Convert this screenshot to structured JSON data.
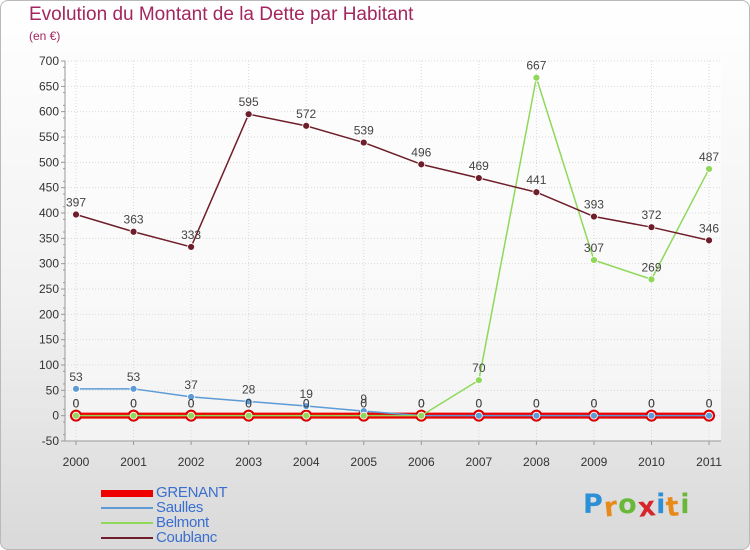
{
  "title": "Evolution du Montant de la Dette par Habitant",
  "unit_label": "(en €)",
  "logo_text": "Proxiti",
  "chart_data": {
    "type": "line",
    "title": "Evolution du Montant de la Dette par Habitant",
    "ylabel": "(en €)",
    "x": [
      "2000",
      "2001",
      "2002",
      "2003",
      "2004",
      "2005",
      "2006",
      "2007",
      "2008",
      "2009",
      "2010",
      "2011"
    ],
    "ylim": [
      -50,
      700
    ],
    "yticks": [
      -50,
      0,
      50,
      100,
      150,
      200,
      250,
      300,
      350,
      400,
      450,
      500,
      550,
      600,
      650,
      700
    ],
    "grid": true,
    "legend_position": "bottom-left",
    "series": [
      {
        "name": "GRENANT",
        "color": "#ee0000",
        "values": [
          0,
          0,
          0,
          0,
          0,
          0,
          0,
          0,
          0,
          0,
          0,
          0
        ],
        "labels": [
          "0",
          "0",
          "0",
          "0",
          "0",
          "0",
          "0",
          "0",
          "0",
          "0",
          "0",
          "0"
        ]
      },
      {
        "name": "Saulles",
        "color": "#5d9bd6",
        "values": [
          53,
          53,
          37,
          28,
          19,
          9,
          0,
          0,
          0,
          0,
          0,
          0
        ],
        "labels": [
          "53",
          "53",
          "37",
          "28",
          "19",
          "9",
          "0",
          "0",
          "0",
          "0",
          "0",
          "0"
        ]
      },
      {
        "name": "Belmont",
        "color": "#8fd85a",
        "values": [
          0,
          0,
          0,
          0,
          0,
          0,
          0,
          70,
          667,
          307,
          269,
          487
        ],
        "labels": [
          "0",
          "0",
          "0",
          "0",
          "0",
          "0",
          "0",
          "70",
          "667",
          "307",
          "269",
          "487"
        ]
      },
      {
        "name": "Coublanc",
        "color": "#6e1e2a",
        "values": [
          397,
          363,
          333,
          595,
          572,
          539,
          496,
          469,
          441,
          393,
          372,
          346
        ],
        "labels": [
          "397",
          "363",
          "333",
          "595",
          "572",
          "539",
          "496",
          "469",
          "441",
          "393",
          "372",
          "346"
        ]
      }
    ]
  }
}
